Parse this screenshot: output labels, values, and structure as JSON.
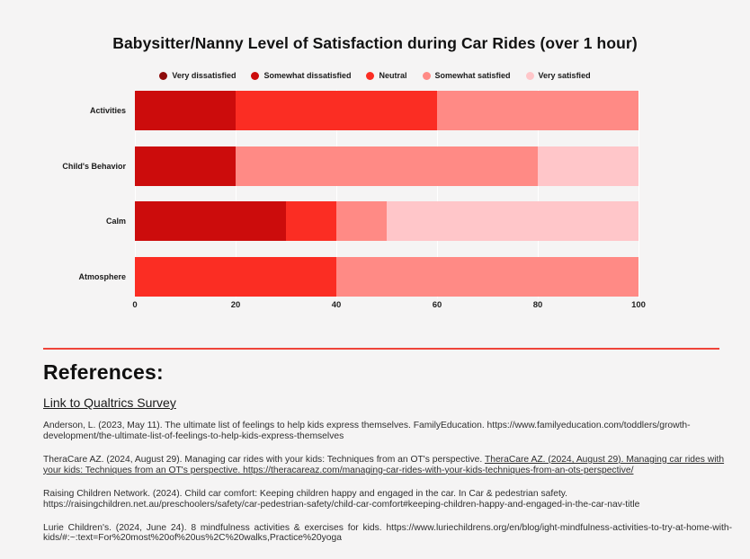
{
  "colors": {
    "page_background": "#f5f4f4",
    "divider": "#ef4439",
    "text": "#121212"
  },
  "chart_data": {
    "type": "bar",
    "orientation": "horizontal",
    "stacked": true,
    "title": "Babysitter/Nanny Level of Satisfaction during Car Rides (over 1 hour)",
    "categories": [
      "Activities",
      "Child's Behavior",
      "Calm",
      "Atmosphere"
    ],
    "series": [
      {
        "name": "Very dissatisfied",
        "color": "#8e0b0b",
        "values": [
          0,
          0,
          0,
          0
        ]
      },
      {
        "name": "Somewhat dissatisfied",
        "color": "#cc0c0c",
        "values": [
          20,
          20,
          30,
          0
        ]
      },
      {
        "name": "Neutral",
        "color": "#fb2d23",
        "values": [
          40,
          0,
          10,
          40
        ]
      },
      {
        "name": "Somewhat satisfied",
        "color": "#ff8a85",
        "values": [
          40,
          60,
          10,
          60
        ]
      },
      {
        "name": "Very satisfied",
        "color": "#ffc6c9",
        "values": [
          0,
          20,
          50,
          0
        ]
      }
    ],
    "x_ticks": [
      0,
      20,
      40,
      60,
      80,
      100
    ],
    "xlim": [
      0,
      100
    ],
    "grid": true,
    "legend_position": "top"
  },
  "references": {
    "heading": "References:",
    "survey_link_label": "Link to Qualtrics Survey",
    "items": [
      {
        "justify": false,
        "parts": [
          {
            "text": "Anderson, L. (2023, May 11). The ultimate list of feelings to help kids express themselves. FamilyEducation. https://www.familyeducation.com/toddlers/growth-development/the-ultimate-list-of-feelings-to-help-kids-express-themselves",
            "link": false
          }
        ]
      },
      {
        "justify": false,
        "parts": [
          {
            "text": "TheraCare AZ. (2024, August 29). Managing car rides with your kids: Techniques from an OT's perspective. ",
            "link": false
          },
          {
            "text": "TheraCare AZ. (2024, August 29). Managing car rides with your kids: Techniques from an OT's perspective. https://theracareaz.com/managing-car-rides-with-your-kids-techniques-from-an-ots-perspective/",
            "link": true
          }
        ]
      },
      {
        "justify": false,
        "parts": [
          {
            "text": "Raising Children Network. (2024). Child car comfort: Keeping children happy and engaged in the car. In Car & pedestrian safety. https://raisingchildren.net.au/preschoolers/safety/car-pedestrian-safety/child-car-comfort#keeping-children-happy-and-engaged-in-the-car-nav-title",
            "link": false
          }
        ]
      },
      {
        "justify": true,
        "parts": [
          {
            "text": "Lurie Children's. (2024, June 24). 8 mindfulness activities & exercises for kids. https://www.luriechildrens.org/en/blog/ight-mindfulness-activities-to-try-at-home-with-kids/#:~:text=For%20most%20of%20us%2C%20walks,Practice%20yoga",
            "link": false
          }
        ]
      }
    ]
  }
}
